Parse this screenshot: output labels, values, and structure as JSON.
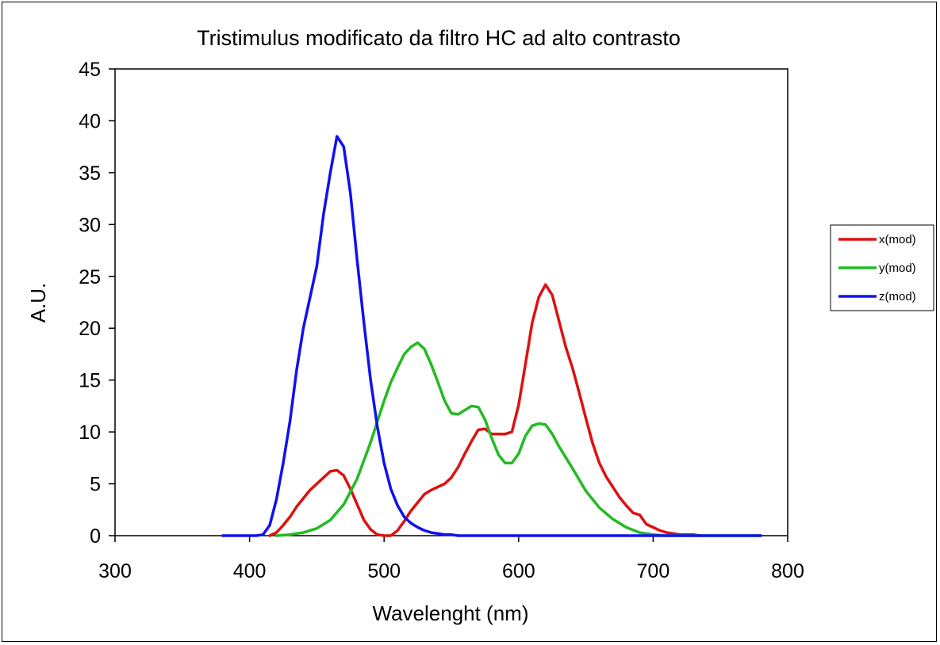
{
  "chart_data": {
    "type": "line",
    "title": "Tristimulus modificato da filtro HC ad alto contrasto",
    "xlabel": "Wavelenght (nm)",
    "ylabel": "A.U.",
    "xlim": [
      300,
      800
    ],
    "ylim": [
      0,
      45
    ],
    "xticks": [
      300,
      400,
      500,
      600,
      700,
      800
    ],
    "yticks": [
      0,
      5,
      10,
      15,
      20,
      25,
      30,
      35,
      40,
      45
    ],
    "grid": false,
    "legend_position": "right",
    "series": [
      {
        "name": "x(mod)",
        "color": "#dd1111",
        "x": [
          415,
          420,
          425,
          430,
          435,
          440,
          445,
          450,
          455,
          460,
          465,
          470,
          475,
          480,
          485,
          490,
          495,
          500,
          505,
          510,
          515,
          520,
          525,
          530,
          535,
          540,
          545,
          550,
          555,
          560,
          565,
          570,
          575,
          580,
          585,
          590,
          595,
          600,
          605,
          610,
          615,
          620,
          625,
          630,
          635,
          640,
          645,
          650,
          655,
          660,
          665,
          670,
          675,
          680,
          685,
          690,
          695,
          700,
          705,
          710,
          715,
          720,
          725,
          730,
          735
        ],
        "y": [
          0.0,
          0.3,
          1.0,
          1.8,
          2.8,
          3.6,
          4.4,
          5.0,
          5.6,
          6.2,
          6.3,
          5.8,
          4.5,
          3.0,
          1.5,
          0.6,
          0.1,
          0.0,
          0.0,
          0.5,
          1.4,
          2.4,
          3.2,
          4.0,
          4.4,
          4.7,
          5.0,
          5.6,
          6.6,
          7.9,
          9.1,
          10.2,
          10.3,
          9.8,
          9.8,
          9.8,
          10.0,
          12.6,
          16.5,
          20.5,
          23.0,
          24.2,
          23.2,
          20.7,
          18.2,
          16.2,
          13.8,
          11.3,
          8.9,
          7.0,
          5.7,
          4.7,
          3.7,
          2.9,
          2.2,
          2.0,
          1.1,
          0.8,
          0.5,
          0.3,
          0.2,
          0.1,
          0.1,
          0.1,
          0.0
        ]
      },
      {
        "name": "y(mod)",
        "color": "#22bb22",
        "x": [
          420,
          430,
          440,
          450,
          460,
          470,
          480,
          490,
          500,
          505,
          510,
          515,
          520,
          525,
          530,
          535,
          540,
          545,
          550,
          555,
          560,
          565,
          570,
          575,
          580,
          585,
          590,
          595,
          600,
          605,
          610,
          615,
          620,
          625,
          630,
          640,
          650,
          660,
          670,
          680,
          690,
          700,
          710,
          720,
          730,
          740,
          760,
          780
        ],
        "y": [
          0.0,
          0.1,
          0.3,
          0.7,
          1.5,
          3.0,
          5.5,
          9.0,
          13.0,
          14.8,
          16.2,
          17.5,
          18.2,
          18.6,
          18.0,
          16.5,
          14.8,
          13.0,
          11.8,
          11.7,
          12.1,
          12.5,
          12.4,
          11.2,
          9.4,
          7.8,
          7.0,
          7.0,
          7.9,
          9.6,
          10.6,
          10.8,
          10.7,
          9.8,
          8.6,
          6.5,
          4.3,
          2.7,
          1.6,
          0.8,
          0.3,
          0.1,
          0.0,
          0.0,
          0.0,
          0.0,
          0.0,
          0.0
        ]
      },
      {
        "name": "z(mod)",
        "color": "#1111ee",
        "x": [
          380,
          390,
          400,
          405,
          410,
          415,
          420,
          425,
          430,
          435,
          440,
          445,
          450,
          455,
          460,
          465,
          470,
          475,
          480,
          485,
          490,
          495,
          500,
          505,
          510,
          515,
          520,
          525,
          530,
          535,
          540,
          545,
          550,
          555,
          560,
          600,
          650,
          700,
          750,
          780
        ],
        "y": [
          0.0,
          0.0,
          0.0,
          0.0,
          0.1,
          1.0,
          3.5,
          7.0,
          11.0,
          16.0,
          20.0,
          23.0,
          26.0,
          31.0,
          35.0,
          38.5,
          37.5,
          33.0,
          26.5,
          20.5,
          15.0,
          10.5,
          7.0,
          4.5,
          2.9,
          1.8,
          1.2,
          0.8,
          0.5,
          0.3,
          0.2,
          0.1,
          0.1,
          0.0,
          0.0,
          0.0,
          0.0,
          0.0,
          0.0,
          0.0
        ]
      }
    ]
  }
}
